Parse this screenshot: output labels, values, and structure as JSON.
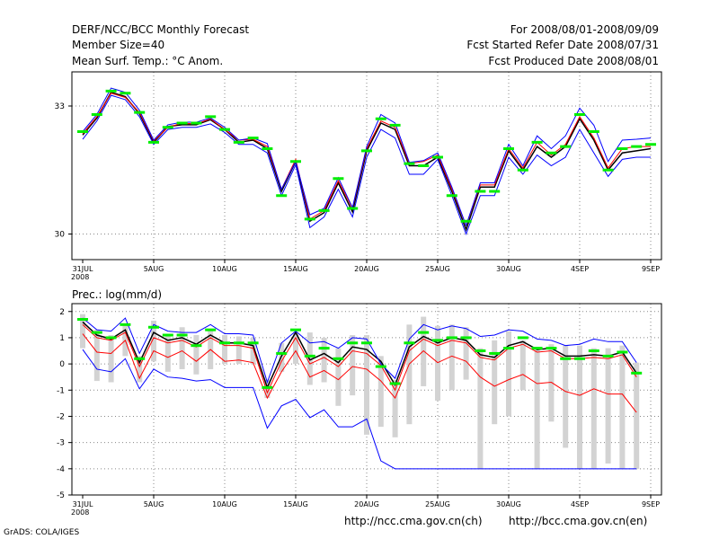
{
  "header": {
    "title": "DERF/NCC/BCC Monthly Forecast",
    "member": "Member Size=40",
    "var": "Mean Surf. Temp.: °C Anom.",
    "for": "For 2008/08/01-2008/09/09",
    "started": "Fcst Started Refer Date 2008/07/31",
    "produced": "Fcst Produced Date 2008/08/01"
  },
  "footer": {
    "url_ch": "http://ncc.cma.gov.cn(ch)",
    "url_en": "http://bcc.cma.gov.cn(en)",
    "grads": "GrADS: COLA/IGES"
  },
  "colors": {
    "ensemble_mean": "#000000",
    "min": "#0000ff",
    "max": "#0000ff",
    "member": "#ff0000",
    "obs": "#00ee00",
    "spread": "#d3d3d3"
  },
  "chart_data": [
    {
      "type": "line",
      "title": "Mean Surf. Temp.: °C Anom.",
      "x_tick_labels": [
        "31JUL",
        "5AUG",
        "10AUG",
        "15AUG",
        "20AUG",
        "25AUG",
        "30AUG",
        "4SEP",
        "9SEP"
      ],
      "x_sub_label": "2008",
      "x_tick_days": [
        0,
        5,
        10,
        15,
        20,
        25,
        30,
        35,
        40
      ],
      "y_tick_labels": [
        "30",
        "33"
      ],
      "ylim": [
        29.4,
        33.8
      ],
      "series": [
        {
          "name": "mean",
          "color": "#000000",
          "values": [
            32.32,
            32.72,
            33.32,
            33.22,
            32.82,
            32.15,
            32.52,
            32.56,
            32.56,
            32.68,
            32.45,
            32.15,
            32.2,
            32.0,
            31.0,
            31.7,
            30.3,
            30.5,
            31.2,
            30.52,
            31.95,
            32.6,
            32.45,
            31.6,
            31.6,
            31.8,
            31.0,
            30.1,
            31.1,
            31.1,
            31.95,
            31.5,
            32.05,
            31.8,
            32.05,
            32.7,
            32.2,
            31.5,
            31.9,
            31.95,
            32.0
          ]
        },
        {
          "name": "red",
          "color": "#ff0000",
          "values": [
            32.35,
            32.75,
            33.3,
            33.2,
            32.85,
            32.18,
            32.5,
            32.6,
            32.58,
            32.7,
            32.45,
            32.2,
            32.22,
            32.05,
            31.05,
            31.75,
            30.35,
            30.55,
            31.25,
            30.6,
            32.0,
            32.65,
            32.5,
            31.65,
            31.7,
            31.85,
            31.05,
            30.2,
            31.15,
            31.15,
            32.0,
            31.55,
            32.15,
            31.85,
            32.1,
            32.75,
            32.25,
            31.55,
            32.0,
            32.05,
            32.05
          ]
        },
        {
          "name": "max",
          "color": "#0000ff",
          "values": [
            32.4,
            32.8,
            33.42,
            33.32,
            32.9,
            32.2,
            32.56,
            32.62,
            32.62,
            32.72,
            32.5,
            32.2,
            32.25,
            32.12,
            31.05,
            31.7,
            30.45,
            30.6,
            31.32,
            30.62,
            32.05,
            32.8,
            32.6,
            31.68,
            31.72,
            31.9,
            31.1,
            30.2,
            31.2,
            31.2,
            32.1,
            31.6,
            32.3,
            32.0,
            32.3,
            32.95,
            32.55,
            31.7,
            32.2,
            32.22,
            32.25
          ]
        },
        {
          "name": "min",
          "color": "#0000ff",
          "values": [
            32.22,
            32.65,
            33.25,
            33.15,
            32.75,
            32.1,
            32.45,
            32.5,
            32.5,
            32.58,
            32.38,
            32.1,
            32.1,
            31.9,
            30.9,
            31.62,
            30.15,
            30.4,
            31.05,
            30.4,
            31.8,
            32.45,
            32.25,
            31.4,
            31.4,
            31.75,
            30.9,
            30.0,
            30.9,
            30.9,
            31.8,
            31.4,
            31.85,
            31.6,
            31.8,
            32.45,
            31.9,
            31.35,
            31.75,
            31.8,
            31.8
          ]
        },
        {
          "name": "obs",
          "color": "#00ee00",
          "values": [
            32.4,
            32.8,
            33.35,
            33.3,
            32.85,
            32.15,
            32.5,
            32.6,
            32.6,
            32.75,
            32.45,
            32.15,
            32.25,
            32.0,
            30.9,
            31.7,
            30.35,
            30.55,
            31.3,
            30.6,
            31.95,
            32.7,
            32.55,
            31.65,
            31.6,
            31.8,
            30.9,
            30.3,
            31.0,
            31.0,
            32.0,
            31.5,
            32.15,
            31.9,
            32.05,
            32.8,
            32.4,
            31.5,
            32.0,
            32.05,
            32.1
          ]
        }
      ]
    },
    {
      "type": "line",
      "title": "Prec.: log(mm/d)",
      "x_tick_labels": [
        "31JUL",
        "5AUG",
        "10AUG",
        "15AUG",
        "20AUG",
        "25AUG",
        "30AUG",
        "4SEP",
        "9SEP"
      ],
      "x_sub_label": "2008",
      "x_tick_days": [
        0,
        5,
        10,
        15,
        20,
        25,
        30,
        35,
        40
      ],
      "y_tick_labels": [
        "2",
        "1",
        "0",
        "-1",
        "-2",
        "-3",
        "-4",
        "-5"
      ],
      "ylim": [
        -5,
        2.3
      ],
      "series": [
        {
          "name": "mean",
          "color": "#000000",
          "values": [
            1.6,
            1.1,
            0.95,
            1.3,
            0.05,
            1.2,
            0.9,
            1.0,
            0.75,
            1.1,
            0.8,
            0.8,
            0.7,
            -0.9,
            0.3,
            1.2,
            0.15,
            0.4,
            0.05,
            0.65,
            0.55,
            0.1,
            -0.8,
            0.65,
            1.05,
            0.8,
            1.0,
            0.9,
            0.35,
            0.25,
            0.7,
            0.85,
            0.55,
            0.6,
            0.3,
            0.3,
            0.35,
            0.3,
            0.45,
            -0.35
          ]
        },
        {
          "name": "red_upper",
          "color": "#ff0000",
          "values": [
            1.5,
            1.0,
            0.9,
            1.2,
            -0.1,
            1.0,
            0.8,
            0.9,
            0.65,
            1.0,
            0.7,
            0.7,
            0.6,
            -1.1,
            0.1,
            1.0,
            0.0,
            0.25,
            -0.1,
            0.5,
            0.4,
            -0.05,
            -1.0,
            0.5,
            0.95,
            0.7,
            0.9,
            0.8,
            0.25,
            0.15,
            0.6,
            0.75,
            0.45,
            0.5,
            0.2,
            0.2,
            0.25,
            0.2,
            0.35,
            -0.5
          ]
        },
        {
          "name": "red_lower",
          "color": "#ff0000",
          "values": [
            1.15,
            0.45,
            0.4,
            0.9,
            -0.55,
            0.5,
            0.25,
            0.5,
            0.1,
            0.55,
            0.1,
            0.15,
            0.05,
            -1.3,
            -0.3,
            0.5,
            -0.5,
            -0.25,
            -0.6,
            -0.1,
            -0.2,
            -0.65,
            -1.3,
            0.0,
            0.5,
            0.05,
            0.3,
            0.1,
            -0.5,
            -0.85,
            -0.6,
            -0.4,
            -0.75,
            -0.7,
            -1.05,
            -1.2,
            -0.95,
            -1.15,
            -1.15,
            -1.85
          ]
        },
        {
          "name": "max",
          "color": "#0000ff",
          "values": [
            1.75,
            1.3,
            1.25,
            1.75,
            0.4,
            1.5,
            1.25,
            1.2,
            1.2,
            1.5,
            1.15,
            1.15,
            1.1,
            -0.7,
            0.8,
            1.25,
            0.8,
            0.85,
            0.6,
            1.0,
            0.95,
            0.0,
            -0.55,
            0.95,
            1.5,
            1.3,
            1.45,
            1.35,
            1.05,
            1.1,
            1.3,
            1.25,
            0.95,
            0.9,
            0.7,
            0.75,
            0.95,
            0.85,
            0.85,
            0.05
          ]
        },
        {
          "name": "min",
          "color": "#0000ff",
          "values": [
            0.55,
            -0.2,
            -0.3,
            0.2,
            -0.95,
            -0.2,
            -0.5,
            -0.55,
            -0.65,
            -0.6,
            -0.9,
            -0.9,
            -0.9,
            -2.45,
            -1.6,
            -1.35,
            -2.05,
            -1.75,
            -2.4,
            -2.4,
            -2.1,
            -3.7,
            -4.0,
            -4.0,
            -4.0,
            -4.0,
            -4.0,
            -4.0,
            -4.0,
            -4.0,
            -4.0,
            -4.0,
            -4.0,
            -4.0,
            -4.0,
            -4.0,
            -4.0,
            -4.0,
            -4.0,
            -4.0
          ]
        },
        {
          "name": "obs",
          "color": "#00ee00",
          "values": [
            1.7,
            1.2,
            1.0,
            1.5,
            0.2,
            1.4,
            1.1,
            1.1,
            0.7,
            1.3,
            0.8,
            0.8,
            0.8,
            -0.9,
            0.4,
            1.3,
            0.3,
            0.6,
            0.2,
            0.8,
            0.8,
            -0.1,
            -0.75,
            0.8,
            1.2,
            0.9,
            1.0,
            1.0,
            0.5,
            0.4,
            0.6,
            1.0,
            0.6,
            0.6,
            0.2,
            0.2,
            0.5,
            0.3,
            0.45,
            -0.35
          ]
        }
      ],
      "spread_bars": {
        "lo": [
          0.6,
          -0.65,
          -0.7,
          0.3,
          -0.7,
          0.1,
          -0.3,
          -0.2,
          -0.4,
          -0.2,
          0.0,
          0.0,
          0.0,
          -1.3,
          -0.3,
          0.0,
          -0.8,
          -0.7,
          -1.6,
          -1.2,
          -2.7,
          -2.4,
          -2.8,
          -2.3,
          -0.85,
          -1.4,
          -1.0,
          -0.6,
          -4.0,
          -2.3,
          -2.0,
          -1.0,
          -4.0,
          -2.2,
          -3.2,
          -4.0,
          -4.0,
          -3.8,
          -4.0,
          -4.0
        ],
        "hi": [
          1.9,
          1.3,
          1.1,
          1.5,
          0.3,
          1.65,
          1.1,
          1.4,
          1.1,
          1.35,
          1.1,
          1.05,
          1.0,
          -0.6,
          0.8,
          1.2,
          1.2,
          1.0,
          0.6,
          1.1,
          1.1,
          0.3,
          -0.6,
          1.5,
          1.8,
          1.45,
          1.5,
          1.4,
          0.6,
          0.9,
          1.25,
          0.9,
          0.6,
          0.75,
          0.7,
          0.7,
          0.6,
          0.6,
          0.7,
          0.05
        ]
      }
    }
  ]
}
